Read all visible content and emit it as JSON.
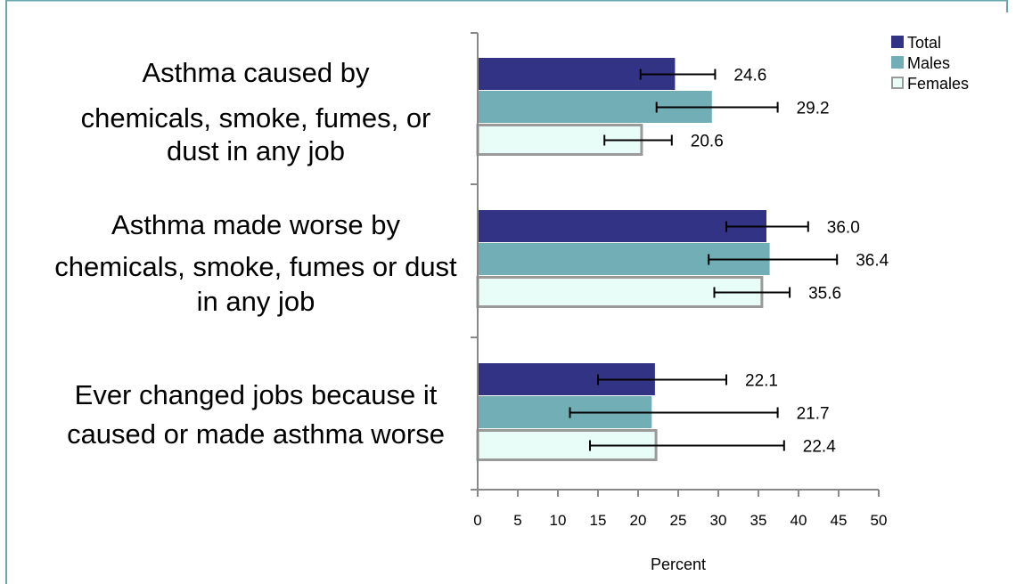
{
  "chart_data": {
    "type": "bar",
    "orientation": "horizontal",
    "categories": [
      [
        "Asthma caused by",
        "chemicals, smoke, fumes, or",
        "dust in any job"
      ],
      [
        "Asthma made worse by",
        "chemicals, smoke, fumes or dust",
        "in any job"
      ],
      [
        "Ever changed jobs because it",
        "caused or made asthma worse"
      ]
    ],
    "series": [
      {
        "name": "Total",
        "color": "#333386",
        "border": "#333386",
        "values": [
          24.6,
          36.0,
          22.1
        ],
        "value_labels": [
          "24.6",
          "36.0",
          "22.1"
        ],
        "ci": [
          [
            20.3,
            29.6
          ],
          [
            31.0,
            41.2
          ],
          [
            15.0,
            31.0
          ]
        ]
      },
      {
        "name": "Males",
        "color": "#72aeb6",
        "border": "#72aeb6",
        "values": [
          29.2,
          36.4,
          21.7
        ],
        "value_labels": [
          "29.2",
          "36.4",
          "21.7"
        ],
        "ci": [
          [
            22.3,
            37.4
          ],
          [
            28.8,
            44.8
          ],
          [
            11.5,
            37.4
          ]
        ]
      },
      {
        "name": "Females",
        "color": "#e8fcf8",
        "border": "#9a9a9a",
        "values": [
          20.6,
          35.6,
          22.4
        ],
        "value_labels": [
          "20.6",
          "35.6",
          "22.4"
        ],
        "ci": [
          [
            15.8,
            24.2
          ],
          [
            29.5,
            38.9
          ],
          [
            14.0,
            38.2
          ]
        ]
      }
    ],
    "xlabel": "Percent",
    "ylabel": "",
    "xlim": [
      0,
      50
    ],
    "xticks": [
      "0",
      "5",
      "10",
      "15",
      "20",
      "25",
      "30",
      "35",
      "40",
      "45",
      "50"
    ],
    "grid": false,
    "legend_position": "top-right"
  }
}
